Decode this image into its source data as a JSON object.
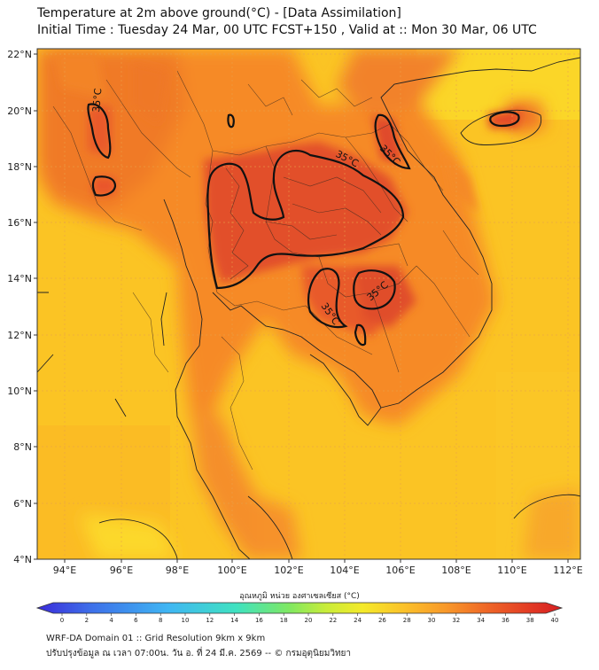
{
  "title_line1": "Temperature at 2m above ground(°C) - [Data Assimilation]",
  "title_line2": "Initial Time : Tuesday 24 Mar, 00 UTC FCST+150 , Valid at :: Mon 30 Mar, 06 UTC",
  "lat_labels": [
    "22°N",
    "20°N",
    "18°N",
    "16°N",
    "14°N",
    "12°N",
    "10°N",
    "8°N",
    "6°N",
    "4°N"
  ],
  "lon_labels": [
    "94°E",
    "96°E",
    "98°E",
    "100°E",
    "102°E",
    "104°E",
    "106°E",
    "108°E",
    "110°E",
    "112°E"
  ],
  "contour_label": "35°C",
  "colorbar": {
    "title": "อุณหภูมิ หน่วย องศาเซลเซียส (°C)",
    "ticks": [
      "0",
      "2",
      "4",
      "6",
      "8",
      "10",
      "12",
      "14",
      "16",
      "18",
      "20",
      "22",
      "24",
      "26",
      "28",
      "30",
      "32",
      "34",
      "36",
      "38",
      "40"
    ],
    "colors": [
      "#3a2bd9",
      "#3e59e8",
      "#3f8bf2",
      "#3fb6f3",
      "#3fd6e6",
      "#3fe2c0",
      "#47e494",
      "#6fe86a",
      "#a5ec4a",
      "#d7ee36",
      "#f4ea2a",
      "#fbd92a",
      "#fbc12a",
      "#f9a52a",
      "#f4862a",
      "#ee6527",
      "#e64424",
      "#dc2424"
    ]
  },
  "footer_line1": "WRF-DA Domain 01 :: Grid Resolution 9km x 9km",
  "footer_line2": "ปรับปรุงข้อมูล ณ เวลา 07:00น. วัน อ. ที่ 24 มี.ค. 2569 -- © กรมอุตุนิยมวิทยา"
}
